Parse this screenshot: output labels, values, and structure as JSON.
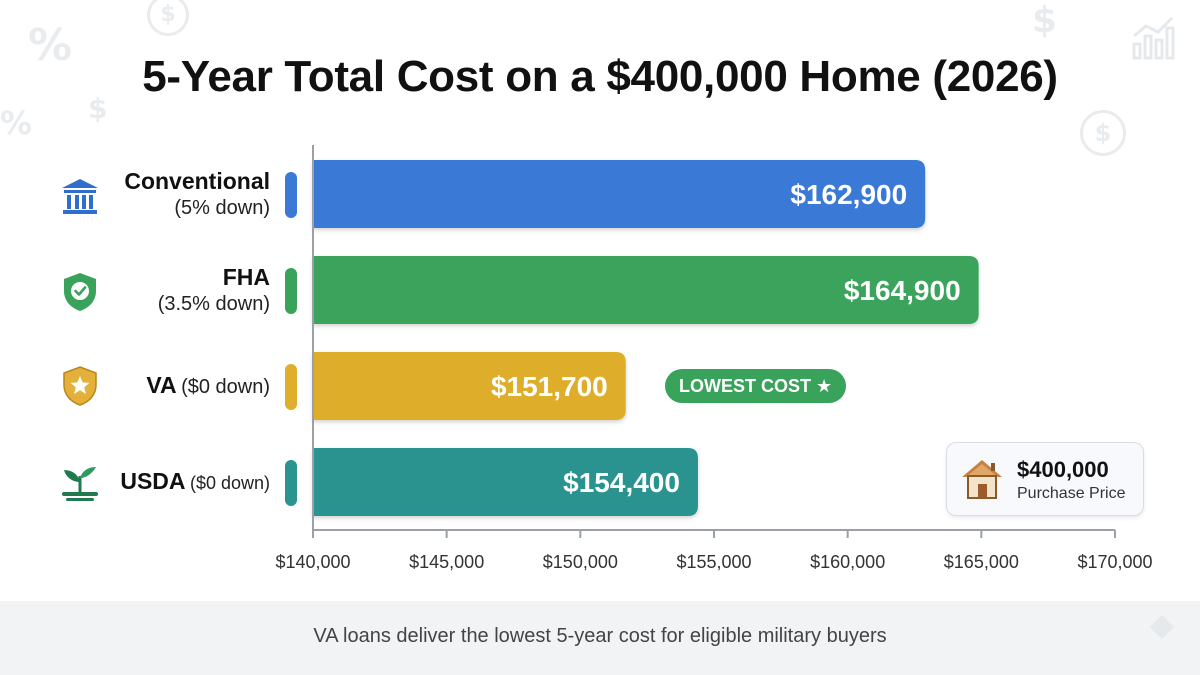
{
  "title": "5-Year Total Cost on a $400,000 Home (2026)",
  "chart_data": {
    "type": "bar",
    "orientation": "horizontal",
    "title": "5-Year Total Cost on a $400,000 Home (2026)",
    "categories": [
      {
        "name": "Conventional",
        "note": "(5% down)",
        "note_inline": false,
        "icon": "bank-icon"
      },
      {
        "name": "FHA",
        "note": "(3.5% down)",
        "note_inline": false,
        "icon": "shield-check-icon"
      },
      {
        "name": "VA",
        "note": "($0 down)",
        "note_inline": true,
        "icon": "star-badge-icon"
      },
      {
        "name": "USDA",
        "note": "($0 down)",
        "note_inline": true,
        "icon": "sprout-icon"
      }
    ],
    "values": [
      162900,
      164900,
      151700,
      154400
    ],
    "value_labels": [
      "$162,900",
      "$164,900",
      "$151,700",
      "$154,400"
    ],
    "colors": [
      "#3a79d6",
      "#3aa35b",
      "#deae2c",
      "#2b9390"
    ],
    "xlim": [
      140000,
      170000
    ],
    "ticks": [
      140000,
      145000,
      150000,
      155000,
      160000,
      165000,
      170000
    ],
    "tick_labels": [
      "$140,000",
      "$145,000",
      "$150,000",
      "$155,000",
      "$160,000",
      "$165,000",
      "$170,000"
    ],
    "xlabel": "",
    "ylabel": "",
    "grid": false,
    "annotation": "LOWEST COST ★"
  },
  "price_card": {
    "amount": "$400,000",
    "label": "Purchase Price",
    "icon": "house-icon"
  },
  "footer": {
    "text": "VA loans deliver the lowest 5-year cost for eligible military buyers"
  },
  "decorations": {
    "dollar": "$",
    "percent": "%"
  }
}
